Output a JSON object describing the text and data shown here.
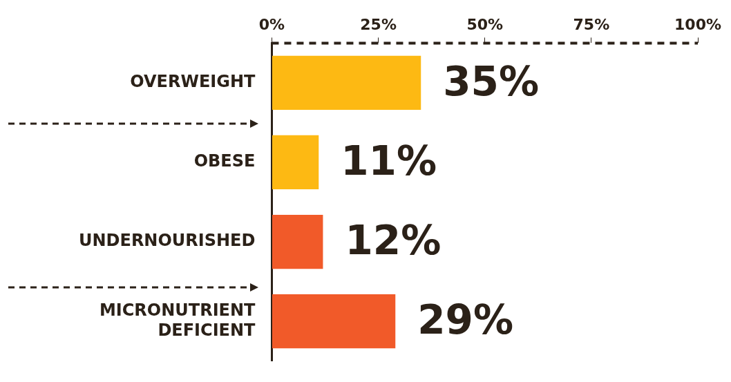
{
  "chart_data": {
    "type": "bar",
    "orientation": "horizontal",
    "categories": [
      "OVERWEIGHT",
      "OBESE",
      "UNDERNOURISHED",
      "MICRONUTRIENT DEFICIENT"
    ],
    "values": [
      35,
      11,
      12,
      29
    ],
    "colors": [
      "#fdb913",
      "#fdb913",
      "#f15a29",
      "#f15a29"
    ],
    "value_labels": [
      "35%",
      "11%",
      "12%",
      "29%"
    ],
    "xlim": [
      0,
      100
    ],
    "xticks": [
      {
        "value": 0,
        "label": "0%"
      },
      {
        "value": 25,
        "label": "25%"
      },
      {
        "value": 50,
        "label": "50%"
      },
      {
        "value": 75,
        "label": "75%"
      },
      {
        "value": 100,
        "label": "100%"
      }
    ]
  }
}
